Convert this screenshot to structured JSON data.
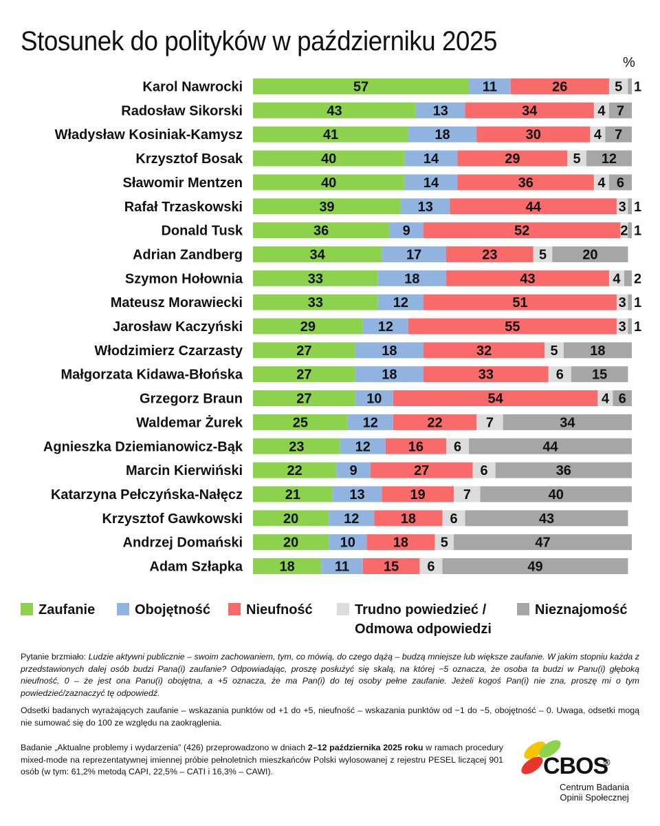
{
  "title": "Stosunek do polityków w październiku 2025",
  "unit_label": "%",
  "colors": {
    "zaufanie": "#8cd24c",
    "obojetnosc": "#91b3e0",
    "nieufnosc": "#f96b6b",
    "trudno": "#dcdcdc",
    "nieznajomosc": "#a6a6a6"
  },
  "legend": {
    "zaufanie": "Zaufanie",
    "obojetnosc": "Obojętność",
    "nieufnosc": "Nieufność",
    "trudno_line1": "Trudno powiedzieć /",
    "trudno_line2": "Odmowa odpowiedzi",
    "nieznajomosc": "Nieznajomość"
  },
  "chart_data": {
    "type": "bar",
    "orientation": "horizontal",
    "stacked": true,
    "title": "Stosunek do polityków w październiku 2025",
    "xlabel": "%",
    "ylabel": "",
    "xlim": [
      0,
      100
    ],
    "categories": [
      "Karol Nawrocki",
      "Radosław Sikorski",
      "Władysław Kosiniak-Kamysz",
      "Krzysztof Bosak",
      "Sławomir Mentzen",
      "Rafał Trzaskowski",
      "Donald Tusk",
      "Adrian Zandberg",
      "Szymon Hołownia",
      "Mateusz Morawiecki",
      "Jarosław Kaczyński",
      "Włodzimierz Czarzasty",
      "Małgorzata Kidawa-Błońska",
      "Grzegorz Braun",
      "Waldemar Żurek",
      "Agnieszka Dziemianowicz-Bąk",
      "Marcin Kierwiński",
      "Katarzyna Pełczyńska-Nałęcz",
      "Krzysztof Gawkowski",
      "Andrzej Domański",
      "Adam Szłapka"
    ],
    "series": [
      {
        "name": "Zaufanie",
        "key": "zaufanie",
        "values": [
          57,
          43,
          41,
          40,
          40,
          39,
          36,
          34,
          33,
          33,
          29,
          27,
          27,
          27,
          25,
          23,
          22,
          21,
          20,
          20,
          18
        ]
      },
      {
        "name": "Obojętność",
        "key": "obojetnosc",
        "values": [
          11,
          13,
          18,
          14,
          14,
          13,
          9,
          17,
          18,
          12,
          12,
          18,
          18,
          10,
          12,
          12,
          9,
          13,
          12,
          10,
          11
        ]
      },
      {
        "name": "Nieufność",
        "key": "nieufnosc",
        "values": [
          26,
          34,
          30,
          29,
          36,
          44,
          52,
          23,
          43,
          51,
          55,
          32,
          33,
          54,
          22,
          16,
          27,
          19,
          18,
          18,
          15
        ]
      },
      {
        "name": "Trudno powiedzieć / Odmowa odpowiedzi",
        "key": "trudno",
        "values": [
          5,
          4,
          4,
          5,
          4,
          3,
          2,
          5,
          4,
          3,
          3,
          5,
          6,
          4,
          7,
          6,
          6,
          7,
          6,
          5,
          6
        ]
      },
      {
        "name": "Nieznajomość",
        "key": "nieznajomosc",
        "values": [
          1,
          7,
          7,
          12,
          6,
          1,
          1,
          20,
          2,
          1,
          1,
          18,
          15,
          6,
          34,
          44,
          36,
          40,
          43,
          47,
          49
        ]
      }
    ]
  },
  "notes": {
    "q_prefix": "Pytanie brzmiało: ",
    "q_italic": "Ludzie aktywni publicznie – swoim zachowaniem, tym, co mówią, do czego dążą – budzą mniejsze lub większe zaufanie. W jakim stopniu każda z przedstawionych dalej osób budzi Pana(i) zaufanie? Odpowiadając, proszę posłużyć się skalą, na której −5 oznacza, że osoba ta budzi w Panu(i) głęboką nieufność, 0 – że jest ona Panu(i) obojętna, a +5 oznacza, że ma Pan(i) do tej osoby pełne zaufanie. Jeżeli kogoś Pan(i) nie zna, proszę mi o tym powiedzieć/zaznaczyć tę odpowiedź.",
    "method": "Odsetki badanych wyrażających zaufanie – wskazania punktów od +1 do +5, nieufność – wskazania punktów od −1 do −5, obojętność – 0. Uwaga, odsetki mogą nie sumować się do 100 ze względu na zaokrąglenia.",
    "study_a": "Badanie „Aktualne problemy i wydarzenia” (426) przeprowadzono w dniach ",
    "study_b": "2–12 października 2025 roku",
    "study_c": " w ramach procedury mixed-mode na reprezentatywnej imiennej próbie pełnoletnich mieszkańców Polski wylosowanej z rejestru PESEL liczącej 901 osób (w tym: 61,2% metodą CAPI, 22,5% – CATI i 16,3% – CAWI)."
  },
  "logo": {
    "name": "CBOS",
    "reg": "®",
    "sub_line1": "Centrum Badania",
    "sub_line2": "Opinii Społecznej"
  }
}
